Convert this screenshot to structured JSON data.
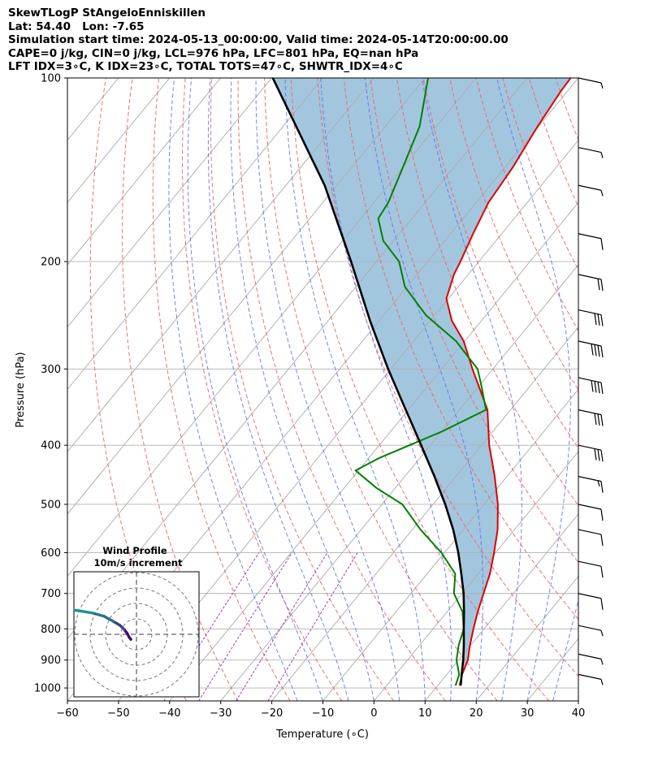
{
  "header": {
    "lines": [
      "SkewTLogP StAngeloEnniskillen",
      "Lat: 54.40   Lon: -7.65",
      "Simulation start time: 2024-05-13_00:00:00, Valid time: 2024-05-14T20:00:00.00",
      "CAPE=0 j/kg, CIN=0 j/kg, LCL=976 hPa, LFC=801 hPa, EQ=nan hPa",
      "LFT IDX=3∘C, K IDX=23∘C, TOTAL TOTS=47∘C, SHWTR_IDX=4∘C"
    ]
  },
  "chart_data": {
    "type": "line",
    "title": "SkewTLogP StAngeloEnniskillen",
    "xlabel": "Temperature (∘C)",
    "ylabel": "Pressure (hPa)",
    "xlim": [
      -60,
      40
    ],
    "ylim": [
      1050,
      100
    ],
    "x_ticks": [
      -60,
      -50,
      -40,
      -30,
      -20,
      -10,
      0,
      10,
      20,
      30,
      40
    ],
    "y_ticks": [
      1000,
      900,
      800,
      700,
      600,
      500,
      400,
      300,
      200,
      100
    ],
    "grid": true,
    "series": [
      {
        "name": "temperature",
        "color": "#e00000",
        "points": [
          [
            991,
            14.3
          ],
          [
            950,
            13.0
          ],
          [
            900,
            11.8
          ],
          [
            850,
            9.8
          ],
          [
            800,
            7.9
          ],
          [
            750,
            6.0
          ],
          [
            700,
            4.2
          ],
          [
            650,
            2.3
          ],
          [
            600,
            -0.3
          ],
          [
            550,
            -3.3
          ],
          [
            500,
            -7.3
          ],
          [
            450,
            -12.4
          ],
          [
            400,
            -18.5
          ],
          [
            350,
            -24.5
          ],
          [
            300,
            -34.0
          ],
          [
            270,
            -40.2
          ],
          [
            250,
            -45.8
          ],
          [
            230,
            -50.4
          ],
          [
            210,
            -52.8
          ],
          [
            200,
            -53.6
          ],
          [
            180,
            -55.6
          ],
          [
            160,
            -57.6
          ],
          [
            140,
            -58.5
          ],
          [
            120,
            -60.2
          ],
          [
            105,
            -61.3
          ],
          [
            100,
            -61.5
          ]
        ]
      },
      {
        "name": "dewpoint",
        "color": "#008000",
        "points": [
          [
            991,
            13.5
          ],
          [
            950,
            12.4
          ],
          [
            900,
            9.6
          ],
          [
            850,
            7.6
          ],
          [
            800,
            6.0
          ],
          [
            750,
            3.0
          ],
          [
            700,
            -1.6
          ],
          [
            650,
            -4.5
          ],
          [
            600,
            -10.6
          ],
          [
            550,
            -18.4
          ],
          [
            500,
            -26.0
          ],
          [
            470,
            -33.7
          ],
          [
            440,
            -40.6
          ],
          [
            420,
            -38.0
          ],
          [
            380,
            -30.0
          ],
          [
            350,
            -24.8
          ],
          [
            320,
            -29.5
          ],
          [
            300,
            -33.0
          ],
          [
            270,
            -41.7
          ],
          [
            245,
            -51.7
          ],
          [
            220,
            -60.4
          ],
          [
            200,
            -65.6
          ],
          [
            185,
            -72.0
          ],
          [
            170,
            -76.6
          ],
          [
            160,
            -77.2
          ],
          [
            140,
            -80.0
          ],
          [
            120,
            -83.3
          ],
          [
            100,
            -89.4
          ]
        ]
      },
      {
        "name": "parcel",
        "color": "#000000",
        "points": [
          [
            991,
            14.5
          ],
          [
            950,
            12.9
          ],
          [
            900,
            10.9
          ],
          [
            850,
            8.6
          ],
          [
            800,
            6.0
          ],
          [
            750,
            3.3
          ],
          [
            700,
            0.3
          ],
          [
            650,
            -3.3
          ],
          [
            600,
            -7.3
          ],
          [
            550,
            -12.0
          ],
          [
            500,
            -17.6
          ],
          [
            450,
            -24.2
          ],
          [
            400,
            -31.8
          ],
          [
            350,
            -40.5
          ],
          [
            300,
            -50.5
          ],
          [
            250,
            -61.8
          ],
          [
            200,
            -75.0
          ],
          [
            150,
            -92.4
          ],
          [
            100,
            -119.8
          ]
        ]
      }
    ],
    "wind_barbs": [
      {
        "pressure": 100,
        "barb": "half"
      },
      {
        "pressure": 130,
        "barb": "half"
      },
      {
        "pressure": 150,
        "barb": "half"
      },
      {
        "pressure": 180,
        "barb": "full"
      },
      {
        "pressure": 210,
        "barb": "full+full"
      },
      {
        "pressure": 240,
        "barb": "full+full+full"
      },
      {
        "pressure": 270,
        "barb": "full+full+full+full"
      },
      {
        "pressure": 310,
        "barb": "full+full+full+full"
      },
      {
        "pressure": 350,
        "barb": "full+full+full"
      },
      {
        "pressure": 400,
        "barb": "full+full+full"
      },
      {
        "pressure": 450,
        "barb": "full+half"
      },
      {
        "pressure": 500,
        "barb": "full"
      },
      {
        "pressure": 550,
        "barb": "full"
      },
      {
        "pressure": 620,
        "barb": "full"
      },
      {
        "pressure": 700,
        "barb": "full"
      },
      {
        "pressure": 790,
        "barb": "half"
      },
      {
        "pressure": 880,
        "barb": "half"
      },
      {
        "pressure": 950,
        "barb": "half"
      }
    ],
    "hodograph": {
      "title": "Wind Profile",
      "subtitle": "10m/s increment",
      "rings_ms": [
        10,
        20,
        30,
        40
      ],
      "points": [
        [
          -1.2,
          -1.1
        ],
        [
          -1.6,
          -0.6
        ],
        [
          -2.0,
          0.2
        ],
        [
          -2.6,
          1.0
        ],
        [
          -3.5,
          1.9
        ],
        [
          -5.0,
          2.8
        ],
        [
          -7.0,
          3.9
        ],
        [
          -9.5,
          4.6
        ],
        [
          -12.5,
          5.1
        ],
        [
          -16.0,
          5.4
        ],
        [
          -19.5,
          5.6
        ],
        [
          -22.0,
          6.5
        ],
        [
          -23.5,
          8.0
        ],
        [
          -24.5,
          10.0
        ],
        [
          -25.5,
          12.5
        ],
        [
          -26.0,
          14.5
        ]
      ]
    }
  },
  "colors": {
    "temperature": "#e00000",
    "dewpoint": "#008000",
    "parcel": "#000000",
    "cape_fill": "#a3c6df",
    "dry_adiabat": "#f06060",
    "moist_adiabat": "#5a6ef0",
    "mixing_ratio": "#9b40c0",
    "isotherm": "#aaaaaa"
  }
}
